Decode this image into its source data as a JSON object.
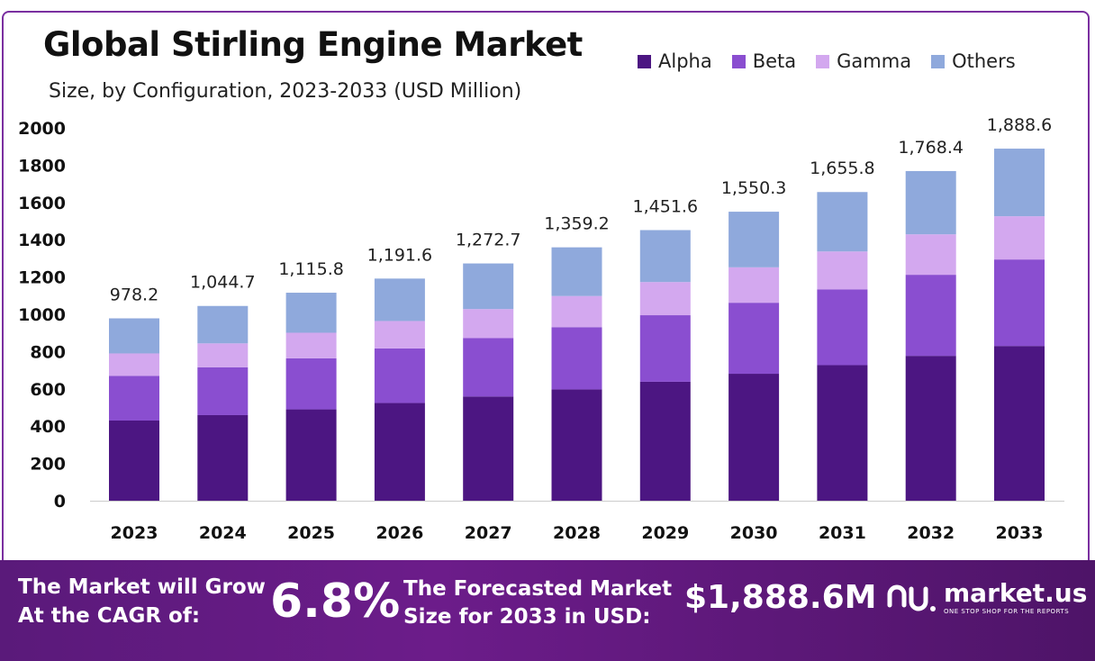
{
  "header": {
    "title": "Global Stirling Engine Market",
    "subtitle": "Size, by Configuration, 2023-2033 (USD Million)"
  },
  "colors": {
    "Alpha": "#4c1682",
    "Beta": "#8a4ed0",
    "Gamma": "#d3a8ef",
    "Others": "#8fa9dc",
    "axis": "#cccccc"
  },
  "chart_data": {
    "type": "bar",
    "stacked": true,
    "categories": [
      "2023",
      "2024",
      "2025",
      "2026",
      "2027",
      "2028",
      "2029",
      "2030",
      "2031",
      "2032",
      "2033"
    ],
    "series": [
      {
        "name": "Alpha",
        "values": [
          430,
          459,
          490,
          524,
          559,
          597,
          638,
          681,
          727,
          777,
          830
        ]
      },
      {
        "name": "Beta",
        "values": [
          240,
          257,
          274,
          293,
          313,
          334,
          357,
          381,
          407,
          435,
          464
        ]
      },
      {
        "name": "Gamma",
        "values": [
          120,
          128,
          137,
          147,
          156,
          167,
          178,
          190,
          203,
          217,
          232
        ]
      },
      {
        "name": "Others",
        "values": [
          188.2,
          200.7,
          214.8,
          227.6,
          244.7,
          261.2,
          278.6,
          298.3,
          318.8,
          339.4,
          362.6
        ]
      }
    ],
    "totals": [
      978.2,
      1044.7,
      1115.8,
      1191.6,
      1272.7,
      1359.2,
      1451.6,
      1550.3,
      1655.8,
      1768.4,
      1888.6
    ],
    "total_labels": [
      "978.2",
      "1,044.7",
      "1,115.8",
      "1,191.6",
      "1,272.7",
      "1,359.2",
      "1,451.6",
      "1,550.3",
      "1,655.8",
      "1,768.4",
      "1,888.6"
    ],
    "yticks": [
      0,
      200,
      400,
      600,
      800,
      1000,
      1200,
      1400,
      1600,
      1800,
      2000
    ],
    "ylim": [
      0,
      2000
    ],
    "legend_position": "top-right"
  },
  "banner": {
    "cagr_line1": "The Market will Grow",
    "cagr_line2": "At the CAGR of:",
    "cagr_value": "6.8%",
    "forecast_line1": "The Forecasted Market",
    "forecast_line2": "Size for 2033 in USD:",
    "forecast_value": "$1,888.6M",
    "brand": "market.us",
    "tagline": "ONE STOP SHOP FOR THE REPORTS"
  }
}
